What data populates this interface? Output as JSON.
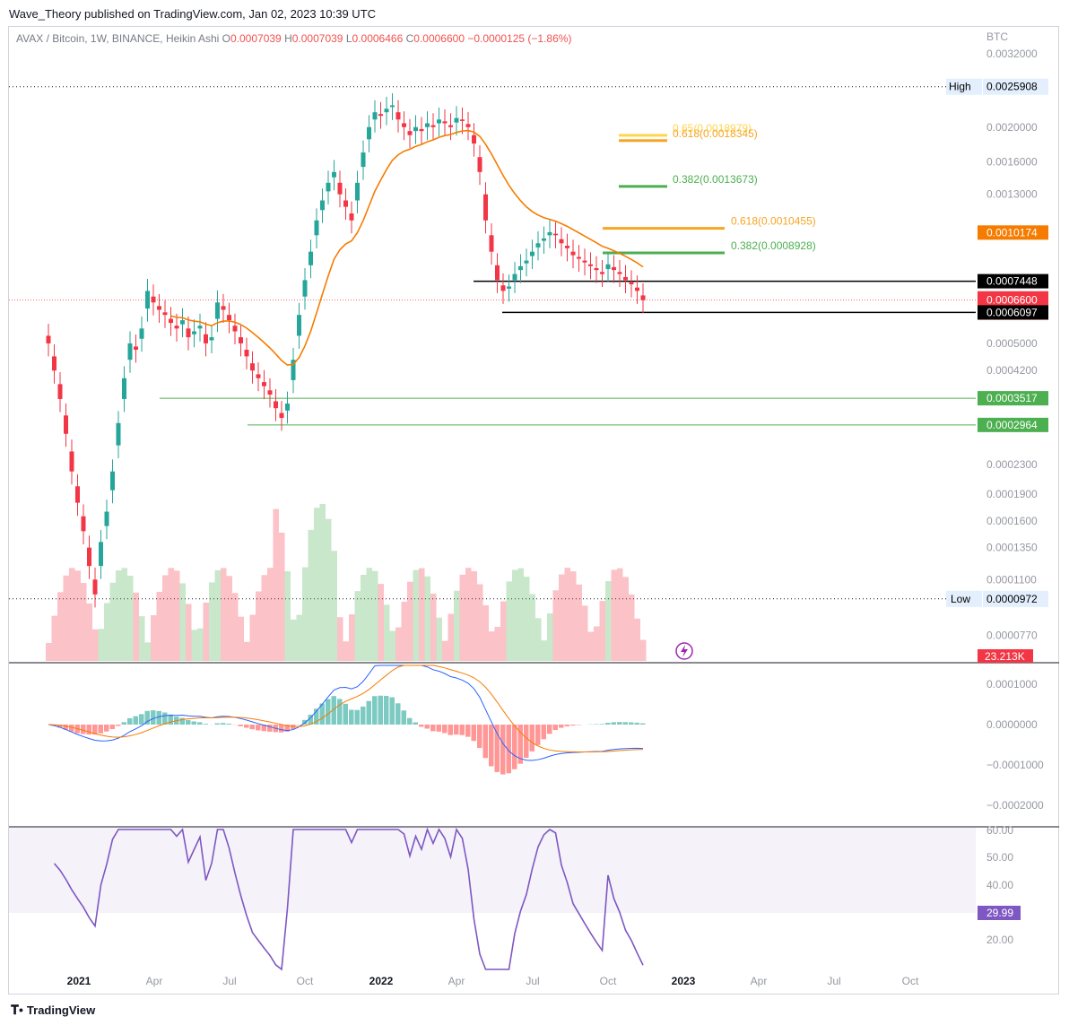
{
  "credit": "Wave_Theory published on TradingView.com, Jan 02, 2023 10:39 UTC",
  "legend": {
    "symbol": "AVAX / Bitcoin, 1W, BINANCE, Heikin Ashi",
    "o_label": "O",
    "o": "0.0007039",
    "h_label": "H",
    "h": "0.0007039",
    "l_label": "L",
    "l": "0.0006466",
    "c_label": "C",
    "c": "0.0006600",
    "change": "−0.0000125 (−1.86%)"
  },
  "brand": "TradingView",
  "colors": {
    "up": "#26a69a",
    "down": "#f23645",
    "ema": "#f57c00",
    "rsi": "#7e57c2",
    "fib_green": "#4caf50",
    "fib_orange": "#f5a623"
  },
  "chart_data": [
    {
      "type": "candlestick",
      "title": "AVAX / Bitcoin, 1W, BINANCE, Heikin Ashi",
      "currency_label": "BTC",
      "price_axis_ticks": [
        "0.0032000",
        "0.0025908",
        "0.0020000",
        "0.0016000",
        "0.0013000",
        "0.0010174",
        "0.0007448",
        "0.0006672",
        "0.0006600",
        "0.0006097",
        "0.0005000",
        "0.0004200",
        "0.0003517",
        "0.0002964",
        "0.0002300",
        "0.0001900",
        "0.0001600",
        "0.0001350",
        "0.0001100",
        "0.0000972",
        "0.0000770"
      ],
      "time_axis_ticks": [
        "2021",
        "Apr",
        "Jul",
        "Oct",
        "2022",
        "Apr",
        "Jul",
        "Oct",
        "2023",
        "Apr",
        "Jul",
        "Oct"
      ],
      "high_label": "High",
      "high_value": "0.0025908",
      "low_label": "Low",
      "low_value": "0.0000972",
      "price_tags": [
        {
          "value": "0.0010174",
          "color": "#f57c00"
        },
        {
          "value": "0.0007448",
          "color": "#000000"
        },
        {
          "value": "0.0006672",
          "color": "#f23645"
        },
        {
          "value": "0.0006600",
          "color": "#f23645"
        },
        {
          "value": "6d 14h",
          "color": "#f23645"
        },
        {
          "value": "0.0006097",
          "color": "#000000"
        },
        {
          "value": "0.0003517",
          "color": "#4caf50"
        },
        {
          "value": "0.0002964",
          "color": "#4caf50"
        }
      ],
      "fib_levels": [
        {
          "label": "0.65(0.0018979)",
          "color": "#ffd54f"
        },
        {
          "label": "0.618(0.0018345)",
          "color": "#f5a623"
        },
        {
          "label": "0.382(0.0013673)",
          "color": "#4caf50"
        },
        {
          "label": "0.618(0.0010455)",
          "color": "#f5a623"
        },
        {
          "label": "0.382(0.0008928)",
          "color": "#4caf50"
        }
      ],
      "volume_label": "23.213K",
      "ema_series_name": "EMA",
      "weekly_close": [
        0.0005,
        0.00042,
        0.00035,
        0.00028,
        0.00022,
        0.00018,
        0.00015,
        0.00012,
        0.0001,
        0.00014,
        0.00017,
        0.00022,
        0.0003,
        0.0004,
        0.0005,
        0.00048,
        0.00055,
        0.0007,
        0.00065,
        0.00062,
        0.0006,
        0.00057,
        0.00055,
        0.00058,
        0.00052,
        0.00054,
        0.00056,
        0.0005,
        0.00052,
        0.00065,
        0.00062,
        0.00058,
        0.00054,
        0.0005,
        0.00046,
        0.00042,
        0.0004,
        0.00038,
        0.00036,
        0.00033,
        0.00031,
        0.00034,
        0.00045,
        0.0006,
        0.00075,
        0.0009,
        0.0011,
        0.00125,
        0.0014,
        0.0015,
        0.0013,
        0.0012,
        0.0011,
        0.0014,
        0.0017,
        0.002,
        0.0022,
        0.00215,
        0.00225,
        0.0023,
        0.0021,
        0.002,
        0.0019,
        0.002,
        0.00195,
        0.00205,
        0.002,
        0.0021,
        0.00205,
        0.002,
        0.00212,
        0.00208,
        0.002,
        0.0018,
        0.0015,
        0.0011,
        0.0009,
        0.00075,
        0.0007,
        0.00072,
        0.00078,
        0.00082,
        0.00085,
        0.0009,
        0.00095,
        0.00098,
        0.00102,
        0.001,
        0.00095,
        0.00092,
        0.00088,
        0.00086,
        0.00084,
        0.00082,
        0.0008,
        0.00078,
        0.00083,
        0.0008,
        0.00078,
        0.00075,
        0.00073,
        0.0007,
        0.00066
      ]
    },
    {
      "type": "macd",
      "axis_ticks": [
        "0.0001000",
        "0.0000000",
        "−0.0001000",
        "−0.0002000"
      ]
    },
    {
      "type": "rsi",
      "value_label": "29.99",
      "axis_ticks": [
        "60.00",
        "50.00",
        "40.00",
        "20.00"
      ]
    }
  ]
}
